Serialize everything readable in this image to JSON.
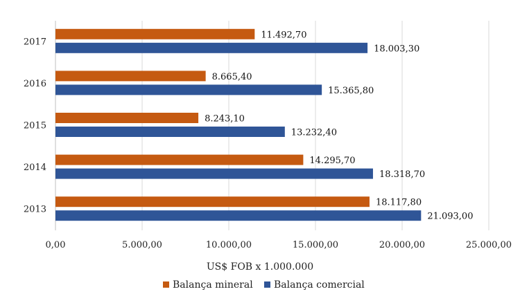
{
  "chart_data": {
    "type": "bar",
    "orientation": "horizontal",
    "categories": [
      "2017",
      "2016",
      "2015",
      "2014",
      "2013"
    ],
    "series": [
      {
        "name": "Balança mineral",
        "color": "#C55A11",
        "values": [
          11492.7,
          8665.4,
          8243.1,
          14295.7,
          18117.8
        ],
        "labels": [
          "11.492,70",
          "8.665,40",
          "8.243,10",
          "14.295,70",
          "18.117,80"
        ]
      },
      {
        "name": "Balança comercial",
        "color": "#2F5597",
        "values": [
          18003.3,
          15365.8,
          13232.4,
          18318.7,
          21093.0
        ],
        "labels": [
          "18.003,30",
          "15.365,80",
          "13.232,40",
          "18.318,70",
          "21.093,00"
        ]
      }
    ],
    "xlim": [
      0,
      25000
    ],
    "xticks": [
      0,
      5000,
      10000,
      15000,
      20000,
      25000
    ],
    "xtick_labels": [
      "0,00",
      "5.000,00",
      "10.000,00",
      "15.000,00",
      "20.000,00",
      "25.000,00"
    ],
    "xlabel": "US$ FOB x 1.000.000",
    "ylabel": "",
    "grid": true,
    "legend_position": "bottom"
  }
}
